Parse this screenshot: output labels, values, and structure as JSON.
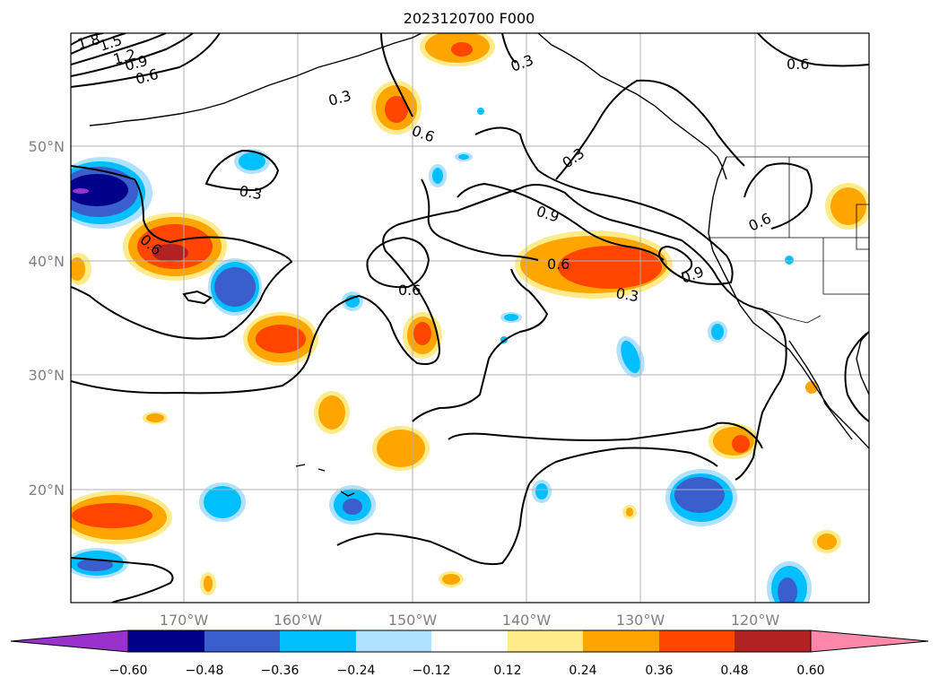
{
  "title": "2023120700 F000",
  "map": {
    "lat_labels": [
      "50°N",
      "40°N",
      "30°N",
      "20°N"
    ],
    "lon_labels": [
      "170°W",
      "160°W",
      "150°W",
      "140°W",
      "130°W",
      "120°W"
    ],
    "contour_labels": [
      "1.8",
      "1.5",
      "1.2",
      "0.9",
      "0.6",
      "0.3",
      "0.6",
      "0.3",
      "0.6",
      "0.3",
      "0.6",
      "0.9",
      "0.6",
      "0.3",
      "0.9",
      "0.6",
      "0.6",
      "0.3"
    ],
    "contour_color": "#000000"
  },
  "colorbar": {
    "colors": [
      "#9932cc",
      "#00008b",
      "#3a5fcd",
      "#00bfff",
      "#b0e2ff",
      "#ffffff",
      "#ffeb8a",
      "#ffa500",
      "#ff4500",
      "#b22222",
      "#ff88aa"
    ],
    "tick_labels": [
      "−0.60",
      "−0.48",
      "−0.36",
      "−0.24",
      "−0.12",
      "0.12",
      "0.24",
      "0.36",
      "0.48",
      "0.60"
    ]
  }
}
